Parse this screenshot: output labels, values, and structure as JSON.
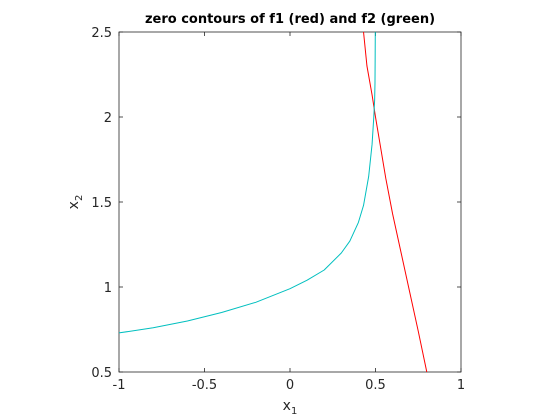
{
  "chart_data": {
    "type": "line",
    "title": "zero contours of f1 (red) and f2 (green)",
    "xlabel": {
      "base": "x",
      "sub": "1"
    },
    "ylabel": {
      "base": "x",
      "sub": "2"
    },
    "xlim": [
      -1,
      1
    ],
    "ylim": [
      0.5,
      2.5
    ],
    "xticks": [
      -1,
      -0.5,
      0,
      0.5,
      1
    ],
    "xtick_labels": [
      "-1",
      "-0.5",
      "0",
      "0.5",
      "1"
    ],
    "yticks": [
      0.5,
      1,
      1.5,
      2,
      2.5
    ],
    "ytick_labels": [
      "0.5",
      "1",
      "1.5",
      "2",
      "2.5"
    ],
    "grid": false,
    "legend": "none",
    "series": [
      {
        "color": "#ff0000",
        "x": [
          0.43,
          0.45,
          0.48,
          0.5,
          0.53,
          0.56,
          0.6,
          0.65,
          0.7,
          0.75,
          0.8
        ],
        "y": [
          2.5,
          2.3,
          2.13,
          2.0,
          1.82,
          1.64,
          1.43,
          1.2,
          0.97,
          0.74,
          0.5
        ]
      },
      {
        "color": "#00bfbf",
        "x": [
          -1.0,
          -0.8,
          -0.6,
          -0.4,
          -0.2,
          0.0,
          0.1,
          0.2,
          0.3,
          0.35,
          0.4,
          0.43,
          0.46,
          0.48,
          0.49,
          0.495,
          0.497,
          0.498,
          0.4987
        ],
        "y": [
          0.73,
          0.76,
          0.8,
          0.85,
          0.91,
          0.99,
          1.04,
          1.1,
          1.2,
          1.27,
          1.38,
          1.48,
          1.65,
          1.84,
          2.0,
          2.1,
          2.2,
          2.35,
          2.5
        ]
      }
    ]
  }
}
